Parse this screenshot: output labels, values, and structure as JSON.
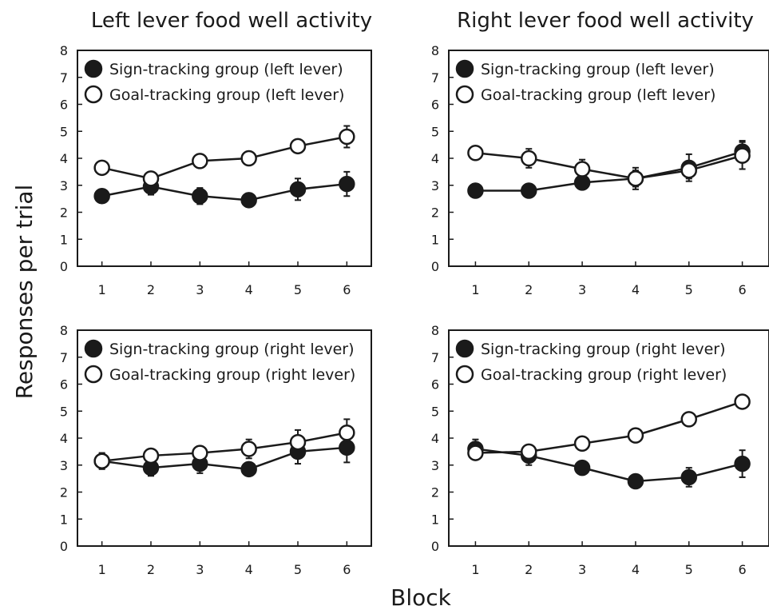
{
  "figure": {
    "ylabel": "Responses per trial",
    "xlabel": "Block"
  },
  "columns": [
    {
      "title": "Left lever food well activity"
    },
    {
      "title": "Right lever food well activity"
    }
  ],
  "chart_data": [
    {
      "type": "line",
      "title": "Left lever food well activity",
      "xlabel": "Block",
      "ylabel": "Responses per trial",
      "x": [
        1,
        2,
        3,
        4,
        5,
        6
      ],
      "xlim": [
        0.5,
        6.5
      ],
      "ylim": [
        0,
        8
      ],
      "yticks": [
        0,
        1,
        2,
        3,
        4,
        5,
        6,
        7,
        8
      ],
      "grid": false,
      "legend": "top-left",
      "series": [
        {
          "name": "Sign-tracking group (left lever)",
          "marker": "filled-circle",
          "color": "#1a1a1a",
          "values": [
            2.6,
            2.95,
            2.6,
            2.45,
            2.85,
            3.05
          ],
          "error": [
            0.15,
            0.3,
            0.3,
            0.25,
            0.4,
            0.45
          ]
        },
        {
          "name": "Goal-tracking group (left lever)",
          "marker": "open-circle",
          "color": "#1a1a1a",
          "values": [
            3.65,
            3.25,
            3.9,
            4.0,
            4.45,
            4.8
          ],
          "error": [
            0.15,
            0.15,
            0.15,
            0.15,
            0.2,
            0.4
          ]
        }
      ]
    },
    {
      "type": "line",
      "title": "Right lever food well activity",
      "xlabel": "Block",
      "ylabel": "Responses per trial",
      "x": [
        1,
        2,
        3,
        4,
        5,
        6
      ],
      "xlim": [
        0.5,
        6.5
      ],
      "ylim": [
        0,
        8
      ],
      "yticks": [
        0,
        1,
        2,
        3,
        4,
        5,
        6,
        7,
        8
      ],
      "grid": false,
      "legend": "top-left",
      "series": [
        {
          "name": "Sign-tracking group (left lever)",
          "marker": "filled-circle",
          "color": "#1a1a1a",
          "values": [
            2.8,
            2.8,
            3.1,
            3.25,
            3.65,
            4.25
          ],
          "error": [
            0.25,
            0.15,
            0.2,
            0.4,
            0.5,
            0.4
          ]
        },
        {
          "name": "Goal-tracking group (left lever)",
          "marker": "open-circle",
          "color": "#1a1a1a",
          "values": [
            4.2,
            4.0,
            3.6,
            3.25,
            3.55,
            4.1
          ],
          "error": [
            0.2,
            0.35,
            0.35,
            0.3,
            0.3,
            0.5
          ]
        }
      ]
    },
    {
      "type": "line",
      "title": "Left lever food well activity",
      "xlabel": "Block",
      "ylabel": "Responses per trial",
      "x": [
        1,
        2,
        3,
        4,
        5,
        6
      ],
      "xlim": [
        0.5,
        6.5
      ],
      "ylim": [
        0,
        8
      ],
      "yticks": [
        0,
        1,
        2,
        3,
        4,
        5,
        6,
        7,
        8
      ],
      "grid": false,
      "legend": "top-left",
      "series": [
        {
          "name": "Sign-tracking group (right lever)",
          "marker": "filled-circle",
          "color": "#1a1a1a",
          "values": [
            3.15,
            2.9,
            3.05,
            2.85,
            3.5,
            3.65
          ],
          "error": [
            0.3,
            0.3,
            0.35,
            0.2,
            0.45,
            0.55
          ]
        },
        {
          "name": "Goal-tracking group (right lever)",
          "marker": "open-circle",
          "color": "#1a1a1a",
          "values": [
            3.15,
            3.35,
            3.45,
            3.6,
            3.85,
            4.2
          ],
          "error": [
            0.15,
            0.15,
            0.2,
            0.35,
            0.45,
            0.5
          ]
        }
      ]
    },
    {
      "type": "line",
      "title": "Right lever food well activity",
      "xlabel": "Block",
      "ylabel": "Responses per trial",
      "x": [
        1,
        2,
        3,
        4,
        5,
        6
      ],
      "xlim": [
        0.5,
        6.5
      ],
      "ylim": [
        0,
        8
      ],
      "yticks": [
        0,
        1,
        2,
        3,
        4,
        5,
        6,
        7,
        8
      ],
      "grid": false,
      "legend": "top-left",
      "series": [
        {
          "name": "Sign-tracking group (right lever)",
          "marker": "filled-circle",
          "color": "#1a1a1a",
          "values": [
            3.6,
            3.35,
            2.9,
            2.4,
            2.55,
            3.05
          ],
          "error": [
            0.35,
            0.35,
            0.25,
            0.15,
            0.35,
            0.5
          ]
        },
        {
          "name": "Goal-tracking group (right lever)",
          "marker": "open-circle",
          "color": "#1a1a1a",
          "values": [
            3.45,
            3.5,
            3.8,
            4.1,
            4.7,
            5.35
          ],
          "error": [
            0.25,
            0.2,
            0.15,
            0.15,
            0.2,
            0.25
          ]
        }
      ]
    }
  ]
}
